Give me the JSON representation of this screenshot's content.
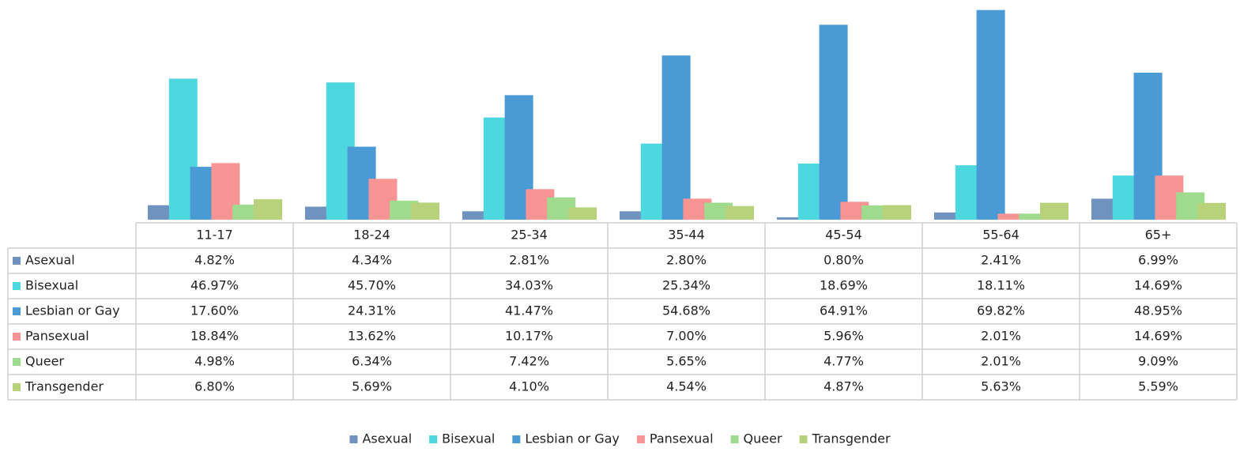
{
  "chart_data": {
    "type": "bar",
    "categories": [
      "11-17",
      "18-24",
      "25-34",
      "35-44",
      "45-54",
      "55-64",
      "65+"
    ],
    "ylim": [
      0,
      70
    ],
    "series": [
      {
        "name": "Asexual",
        "color": "#7092be",
        "values": [
          4.82,
          4.34,
          2.81,
          2.8,
          0.8,
          2.41,
          6.99
        ],
        "value_labels": [
          "4.82%",
          "4.34%",
          "2.81%",
          "2.80%",
          "0.80%",
          "2.41%",
          "6.99%"
        ]
      },
      {
        "name": "Bisexual",
        "color": "#4dd7df",
        "values": [
          46.97,
          45.7,
          34.03,
          25.34,
          18.69,
          18.11,
          14.69
        ],
        "value_labels": [
          "46.97%",
          "45.70%",
          "34.03%",
          "25.34%",
          "18.69%",
          "18.11%",
          "14.69%"
        ]
      },
      {
        "name": "Lesbian or Gay",
        "color": "#4a9ad5",
        "values": [
          17.6,
          24.31,
          41.47,
          54.68,
          64.91,
          69.82,
          48.95
        ],
        "value_labels": [
          "17.60%",
          "24.31%",
          "41.47%",
          "54.68%",
          "64.91%",
          "69.82%",
          "48.95%"
        ]
      },
      {
        "name": "Pansexual",
        "color": "#f89494",
        "values": [
          18.84,
          13.62,
          10.17,
          7.0,
          5.96,
          2.01,
          14.69
        ],
        "value_labels": [
          "18.84%",
          "13.62%",
          "10.17%",
          "7.00%",
          "5.96%",
          "2.01%",
          "14.69%"
        ]
      },
      {
        "name": "Queer",
        "color": "#9fdb8e",
        "values": [
          4.98,
          6.34,
          7.42,
          5.65,
          4.77,
          2.01,
          9.09
        ],
        "value_labels": [
          "4.98%",
          "6.34%",
          "7.42%",
          "5.65%",
          "4.77%",
          "2.01%",
          "9.09%"
        ]
      },
      {
        "name": "Transgender",
        "color": "#b8d27b",
        "values": [
          6.8,
          5.69,
          4.1,
          4.54,
          4.87,
          5.63,
          5.59
        ],
        "value_labels": [
          "6.80%",
          "5.69%",
          "4.10%",
          "4.54%",
          "4.87%",
          "5.63%",
          "5.59%"
        ]
      }
    ]
  }
}
